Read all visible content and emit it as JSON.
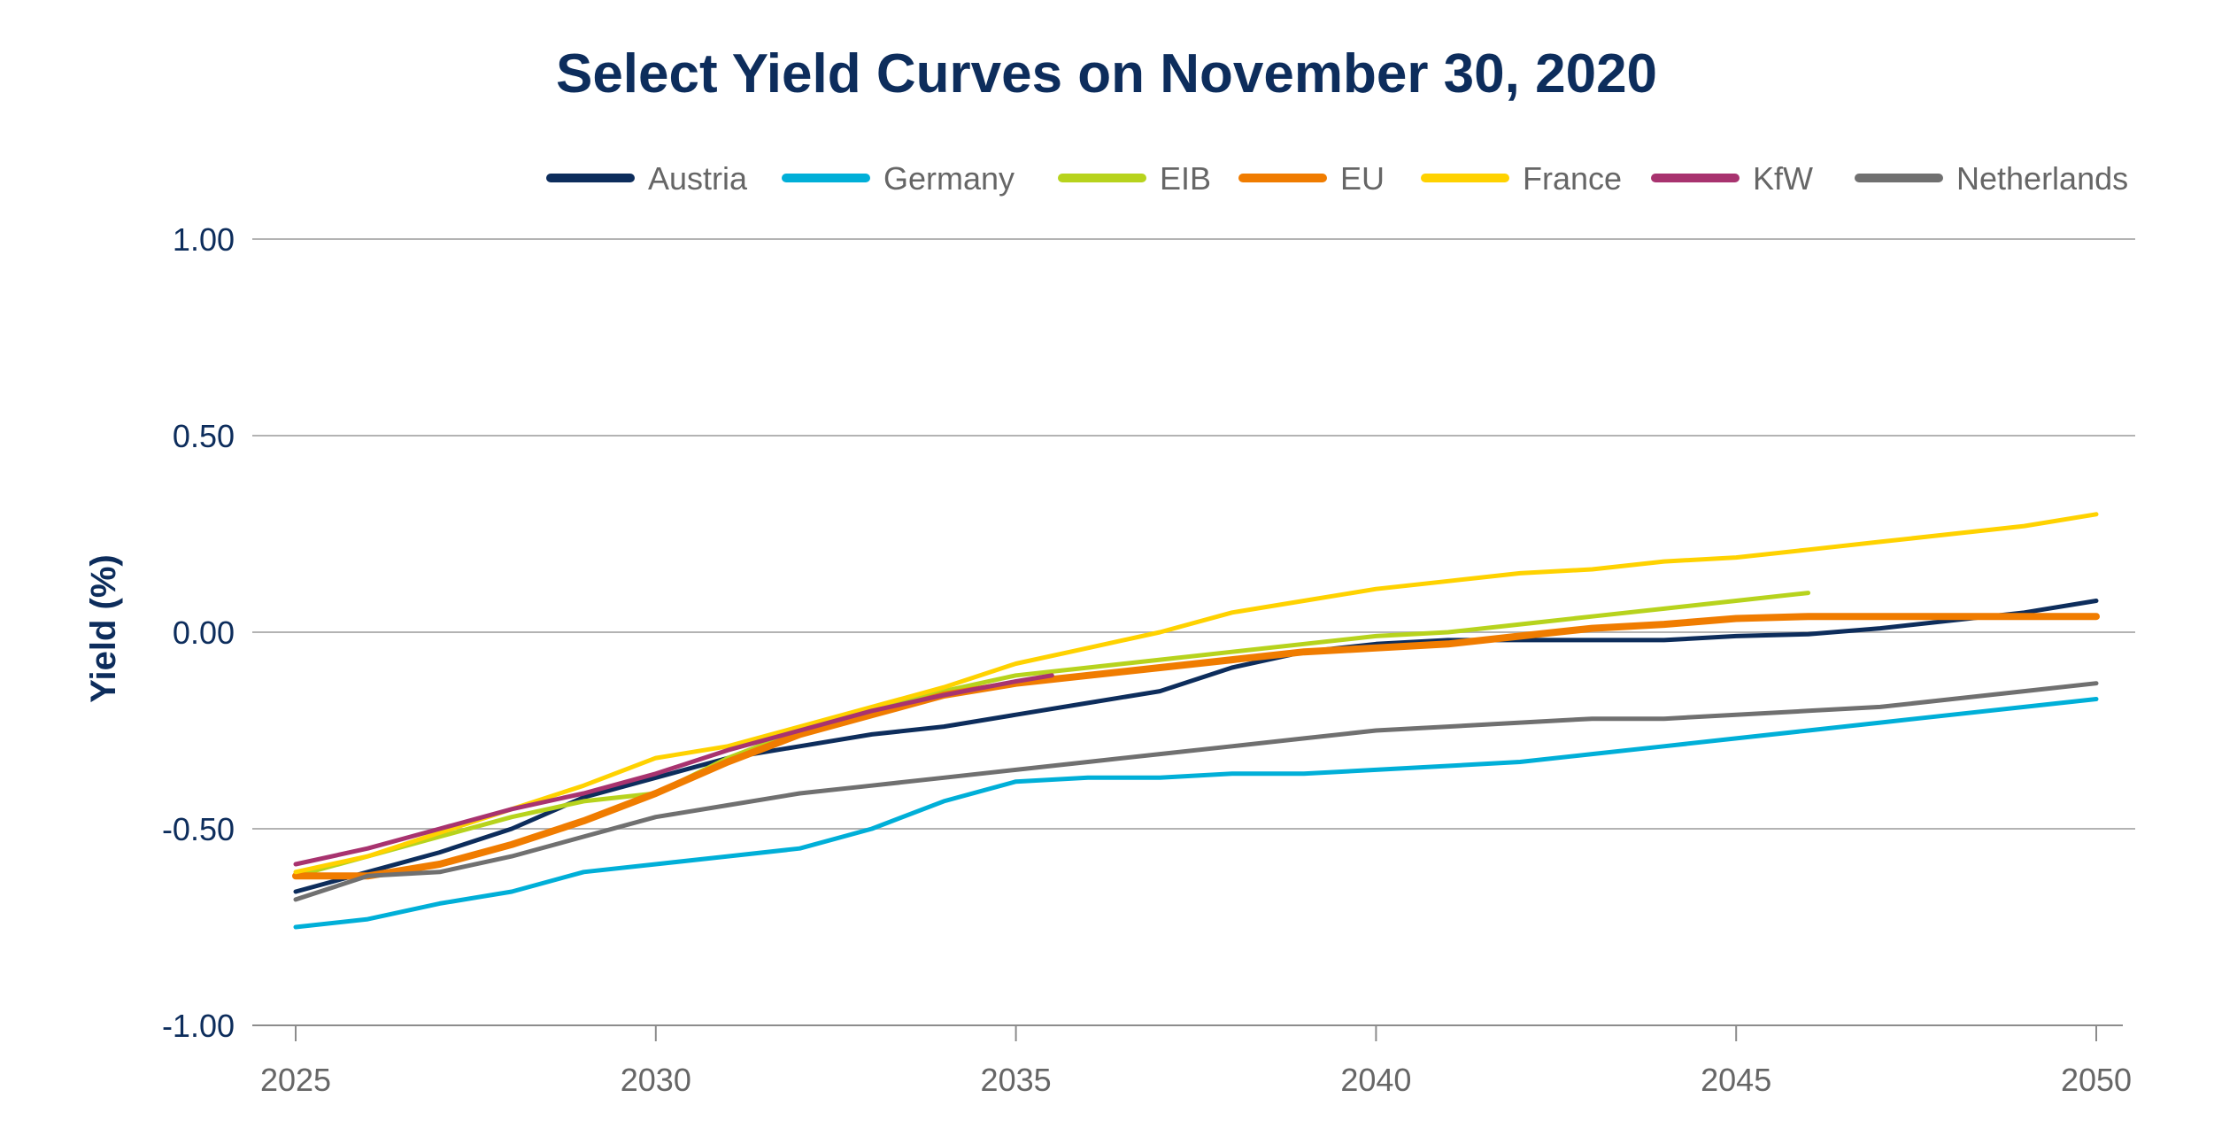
{
  "chart_data": {
    "type": "line",
    "title": "Select Yield Curves on November 30, 2020",
    "xlabel": "",
    "ylabel": "Yield (%)",
    "xlim": [
      2025,
      2050
    ],
    "ylim": [
      -1.0,
      1.0
    ],
    "xticks": [
      "2025",
      "2030",
      "2035",
      "2040",
      "2045",
      "2050"
    ],
    "yticks": [
      "1.00",
      "0.50",
      "0.00",
      "-0.50",
      "-1.00"
    ],
    "grid": true,
    "legend_position": "top-right",
    "series": [
      {
        "name": "Austria",
        "color": "#0d2d5c",
        "points": [
          [
            2025,
            -0.66
          ],
          [
            2026,
            -0.61
          ],
          [
            2027,
            -0.56
          ],
          [
            2028,
            -0.5
          ],
          [
            2029,
            -0.42
          ],
          [
            2030,
            -0.37
          ],
          [
            2031,
            -0.32
          ],
          [
            2032,
            -0.29
          ],
          [
            2033,
            -0.26
          ],
          [
            2034,
            -0.24
          ],
          [
            2035,
            -0.21
          ],
          [
            2036,
            -0.18
          ],
          [
            2037,
            -0.15
          ],
          [
            2038,
            -0.09
          ],
          [
            2039,
            -0.05
          ],
          [
            2040,
            -0.03
          ],
          [
            2041,
            -0.02
          ],
          [
            2042,
            -0.02
          ],
          [
            2043,
            -0.02
          ],
          [
            2044,
            -0.02
          ],
          [
            2045,
            -0.01
          ],
          [
            2046,
            -0.005
          ],
          [
            2047,
            0.01
          ],
          [
            2048,
            0.03
          ],
          [
            2049,
            0.05
          ],
          [
            2050,
            0.08
          ]
        ]
      },
      {
        "name": "Germany",
        "color": "#00afd8",
        "points": [
          [
            2025,
            -0.75
          ],
          [
            2026,
            -0.73
          ],
          [
            2027,
            -0.69
          ],
          [
            2028,
            -0.66
          ],
          [
            2029,
            -0.61
          ],
          [
            2030,
            -0.59
          ],
          [
            2031,
            -0.57
          ],
          [
            2032,
            -0.55
          ],
          [
            2033,
            -0.5
          ],
          [
            2034,
            -0.43
          ],
          [
            2035,
            -0.38
          ],
          [
            2036,
            -0.37
          ],
          [
            2037,
            -0.37
          ],
          [
            2038,
            -0.36
          ],
          [
            2039,
            -0.36
          ],
          [
            2040,
            -0.35
          ],
          [
            2041,
            -0.34
          ],
          [
            2042,
            -0.33
          ],
          [
            2043,
            -0.31
          ],
          [
            2044,
            -0.29
          ],
          [
            2045,
            -0.27
          ],
          [
            2046,
            -0.25
          ],
          [
            2047,
            -0.23
          ],
          [
            2048,
            -0.21
          ],
          [
            2049,
            -0.19
          ],
          [
            2050,
            -0.17
          ]
        ]
      },
      {
        "name": "EIB",
        "color": "#b7d31d",
        "points": [
          [
            2025,
            -0.62
          ],
          [
            2026,
            -0.57
          ],
          [
            2027,
            -0.52
          ],
          [
            2028,
            -0.47
          ],
          [
            2029,
            -0.43
          ],
          [
            2030,
            -0.41
          ],
          [
            2031,
            -0.32
          ],
          [
            2032,
            -0.25
          ],
          [
            2033,
            -0.2
          ],
          [
            2034,
            -0.15
          ],
          [
            2035,
            -0.11
          ],
          [
            2036,
            -0.09
          ],
          [
            2037,
            -0.07
          ],
          [
            2038,
            -0.05
          ],
          [
            2039,
            -0.03
          ],
          [
            2040,
            -0.01
          ],
          [
            2041,
            0.0
          ],
          [
            2042,
            0.02
          ],
          [
            2043,
            0.04
          ],
          [
            2044,
            0.06
          ],
          [
            2045,
            0.08
          ],
          [
            2046,
            0.1
          ]
        ]
      },
      {
        "name": "EU",
        "color": "#f07c00",
        "points": [
          [
            2025,
            -0.62
          ],
          [
            2026,
            -0.62
          ],
          [
            2027,
            -0.59
          ],
          [
            2028,
            -0.54
          ],
          [
            2029,
            -0.48
          ],
          [
            2030,
            -0.41
          ],
          [
            2031,
            -0.33
          ],
          [
            2032,
            -0.26
          ],
          [
            2033,
            -0.21
          ],
          [
            2034,
            -0.16
          ],
          [
            2035,
            -0.13
          ],
          [
            2036,
            -0.11
          ],
          [
            2037,
            -0.09
          ],
          [
            2038,
            -0.07
          ],
          [
            2039,
            -0.05
          ],
          [
            2040,
            -0.04
          ],
          [
            2041,
            -0.03
          ],
          [
            2042,
            -0.01
          ],
          [
            2043,
            0.01
          ],
          [
            2044,
            0.02
          ],
          [
            2045,
            0.035
          ],
          [
            2046,
            0.04
          ],
          [
            2047,
            0.04
          ],
          [
            2048,
            0.04
          ],
          [
            2049,
            0.04
          ],
          [
            2050,
            0.04
          ]
        ]
      },
      {
        "name": "France",
        "color": "#ffd200",
        "points": [
          [
            2025,
            -0.61
          ],
          [
            2026,
            -0.57
          ],
          [
            2027,
            -0.51
          ],
          [
            2028,
            -0.45
          ],
          [
            2029,
            -0.39
          ],
          [
            2030,
            -0.32
          ],
          [
            2031,
            -0.29
          ],
          [
            2032,
            -0.24
          ],
          [
            2033,
            -0.19
          ],
          [
            2034,
            -0.14
          ],
          [
            2035,
            -0.08
          ],
          [
            2036,
            -0.04
          ],
          [
            2037,
            0.0
          ],
          [
            2038,
            0.05
          ],
          [
            2039,
            0.08
          ],
          [
            2040,
            0.11
          ],
          [
            2041,
            0.13
          ],
          [
            2042,
            0.15
          ],
          [
            2043,
            0.16
          ],
          [
            2044,
            0.18
          ],
          [
            2045,
            0.19
          ],
          [
            2046,
            0.21
          ],
          [
            2047,
            0.23
          ],
          [
            2048,
            0.25
          ],
          [
            2049,
            0.27
          ],
          [
            2050,
            0.3
          ]
        ]
      },
      {
        "name": "KfW",
        "color": "#a8336f",
        "points": [
          [
            2025,
            -0.59
          ],
          [
            2026,
            -0.55
          ],
          [
            2027,
            -0.5
          ],
          [
            2028,
            -0.45
          ],
          [
            2029,
            -0.41
          ],
          [
            2030,
            -0.36
          ],
          [
            2031,
            -0.3
          ],
          [
            2032,
            -0.25
          ],
          [
            2033,
            -0.2
          ],
          [
            2034,
            -0.16
          ],
          [
            2035,
            -0.125
          ],
          [
            2035.5,
            -0.11
          ]
        ]
      },
      {
        "name": "Netherlands",
        "color": "#707070",
        "points": [
          [
            2025,
            -0.68
          ],
          [
            2026,
            -0.62
          ],
          [
            2027,
            -0.61
          ],
          [
            2028,
            -0.57
          ],
          [
            2029,
            -0.52
          ],
          [
            2030,
            -0.47
          ],
          [
            2031,
            -0.44
          ],
          [
            2032,
            -0.41
          ],
          [
            2033,
            -0.39
          ],
          [
            2034,
            -0.37
          ],
          [
            2035,
            -0.35
          ],
          [
            2036,
            -0.33
          ],
          [
            2037,
            -0.31
          ],
          [
            2038,
            -0.29
          ],
          [
            2039,
            -0.27
          ],
          [
            2040,
            -0.25
          ],
          [
            2041,
            -0.24
          ],
          [
            2042,
            -0.23
          ],
          [
            2043,
            -0.22
          ],
          [
            2044,
            -0.22
          ],
          [
            2045,
            -0.21
          ],
          [
            2046,
            -0.2
          ],
          [
            2047,
            -0.19
          ],
          [
            2048,
            -0.17
          ],
          [
            2049,
            -0.15
          ],
          [
            2050,
            -0.13
          ]
        ]
      }
    ]
  }
}
